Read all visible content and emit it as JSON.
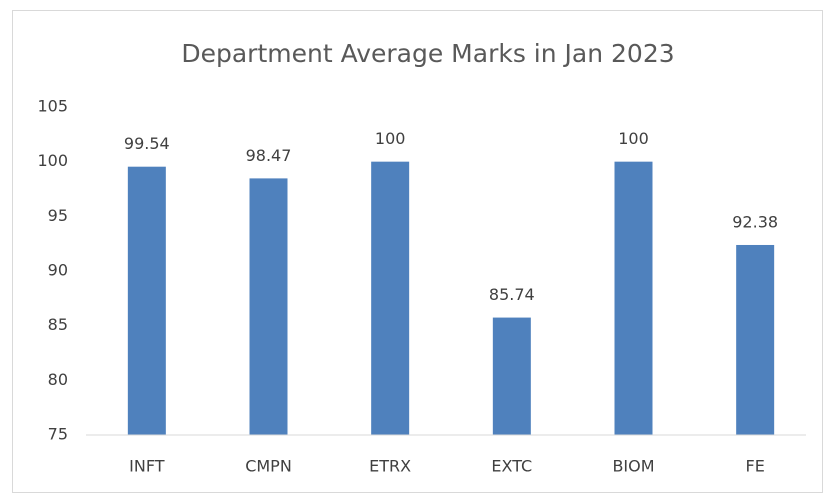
{
  "chart_data": {
    "type": "bar",
    "title": "Department Average Marks in Jan 2023",
    "categories": [
      "INFT",
      "CMPN",
      "ETRX",
      "EXTC",
      "BIOM",
      "FE"
    ],
    "values": [
      99.54,
      98.47,
      100,
      85.74,
      100,
      92.38
    ],
    "color": "#4f81bd",
    "ylim": [
      75,
      105
    ],
    "yticks": [
      75,
      80,
      85,
      90,
      95,
      100,
      105
    ],
    "grid": false
  }
}
